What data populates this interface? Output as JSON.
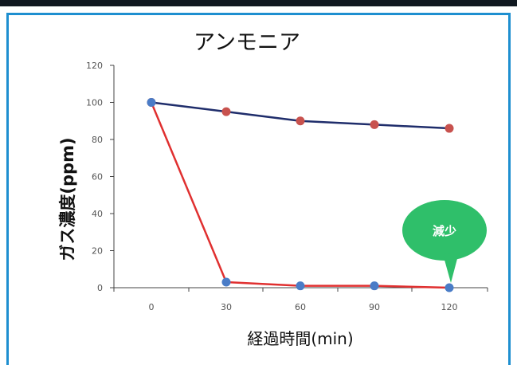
{
  "chart_data": {
    "type": "line",
    "title": "アンモニア",
    "xlabel": "経過時間(min)",
    "ylabel": "ガス濃度(ppm)",
    "x": [
      0,
      30,
      60,
      90,
      120
    ],
    "ylim": [
      0,
      120
    ],
    "yticks": [
      0,
      20,
      40,
      60,
      80,
      100,
      120
    ],
    "grid": false,
    "series": [
      {
        "line_color": "#1f2d6b",
        "marker_color": "#c8524e",
        "values": [
          100,
          95,
          90,
          88,
          86
        ]
      },
      {
        "line_color": "#e03030",
        "marker_color": "#4a7cc7",
        "values": [
          100,
          3,
          1,
          1,
          0
        ]
      }
    ],
    "annotations": [
      {
        "text": "減少",
        "x": 120,
        "y": 0,
        "bubble_color": "#2fbf6a"
      }
    ]
  },
  "colors": {
    "frame_top": "#101820",
    "frame_border": "#1e8fd0",
    "axis": "#444444"
  }
}
